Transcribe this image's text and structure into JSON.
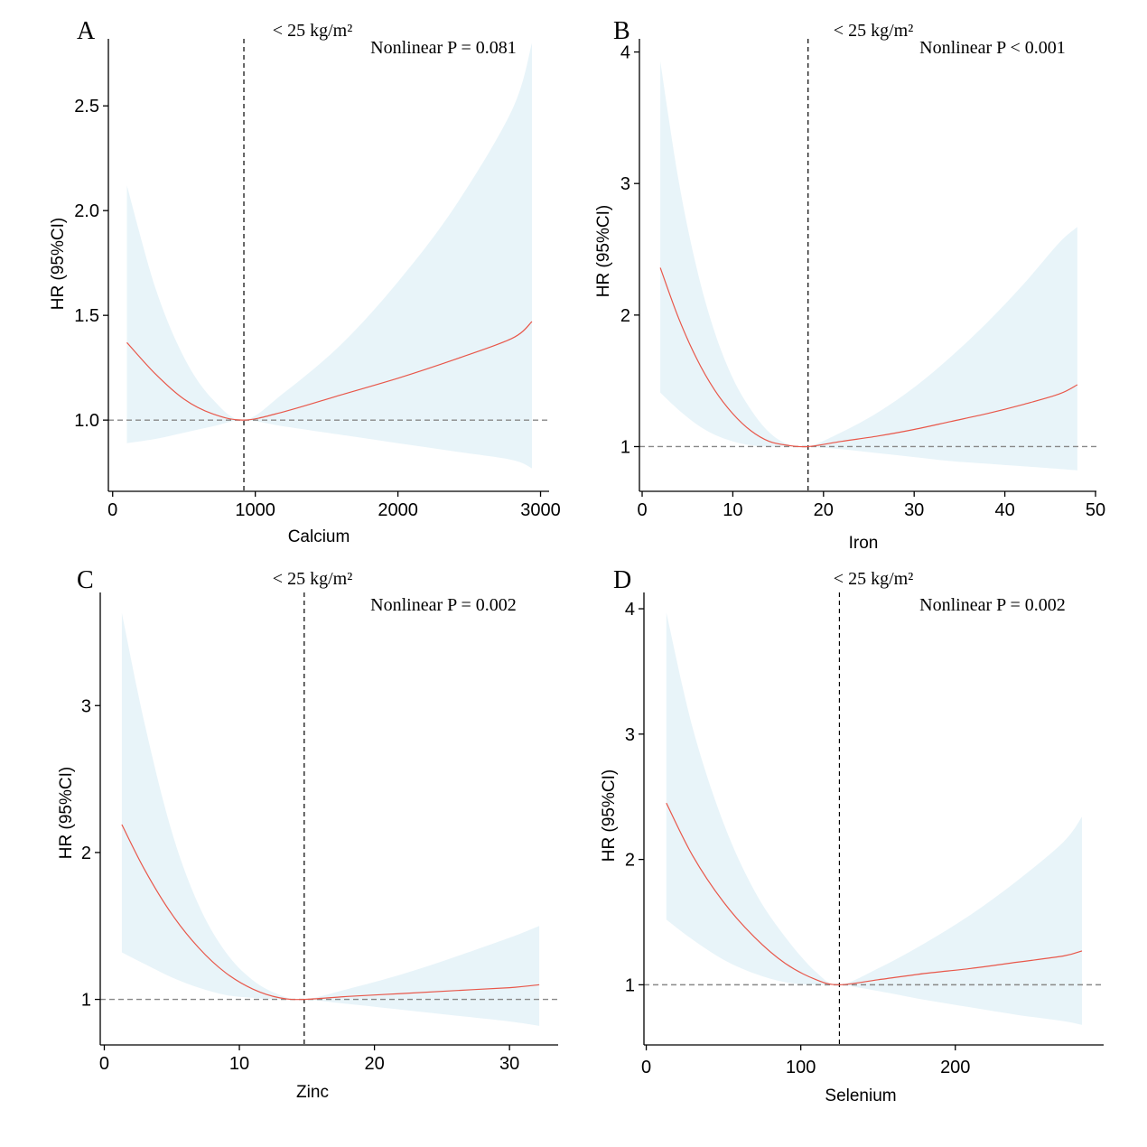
{
  "chart_data": [
    {
      "type": "line",
      "panel": "A",
      "subtitle": "< 25 kg/m²",
      "annotation": "Nonlinear P = 0.081",
      "xlabel": "Calcium",
      "ylabel": "HR (95%CI)",
      "xlim": [
        -30,
        3060
      ],
      "ylim": [
        0.66,
        2.82
      ],
      "x_ticks": [
        0,
        1000,
        2000,
        3000
      ],
      "x_tick_labels": [
        "0",
        "1000",
        "2000",
        "3000"
      ],
      "y_ticks": [
        1.0,
        1.5,
        2.0,
        2.5
      ],
      "y_tick_labels": [
        "1.0",
        "1.5",
        "2.0",
        "2.5"
      ],
      "reference_hr": 1,
      "reference_x": 920,
      "vertical_line_color": "#000000",
      "series": [
        {
          "x": [
            100,
            300,
            500,
            700,
            920,
            1200,
            1600,
            2000,
            2400,
            2800,
            2940
          ],
          "hr": [
            1.37,
            1.22,
            1.1,
            1.03,
            1.0,
            1.04,
            1.12,
            1.2,
            1.29,
            1.39,
            1.47
          ],
          "lower": [
            0.89,
            0.91,
            0.94,
            0.97,
            1.0,
            0.97,
            0.93,
            0.89,
            0.85,
            0.81,
            0.77
          ],
          "upper": [
            2.12,
            1.63,
            1.3,
            1.1,
            1.0,
            1.13,
            1.36,
            1.66,
            2.02,
            2.48,
            2.8
          ]
        }
      ]
    },
    {
      "type": "line",
      "panel": "B",
      "subtitle": "< 25 kg/m²",
      "annotation": "Nonlinear P < 0.001",
      "xlabel": "Iron",
      "ylabel": "HR (95%CI)",
      "xlim": [
        -0.3,
        50.1
      ],
      "ylim": [
        0.66,
        4.1
      ],
      "x_ticks": [
        0,
        10,
        20,
        30,
        40,
        50
      ],
      "x_tick_labels": [
        "0",
        "10",
        "20",
        "30",
        "40",
        "50"
      ],
      "y_ticks": [
        1,
        2,
        3,
        4
      ],
      "y_tick_labels": [
        "1",
        "2",
        "3",
        "4"
      ],
      "reference_hr": 1,
      "reference_x": 18.3,
      "vertical_line_color": "#8a8a8a",
      "series": [
        {
          "x": [
            2,
            4,
            6,
            8,
            10,
            12,
            14,
            16,
            18.3,
            22,
            26,
            30,
            34,
            38,
            42,
            46,
            48
          ],
          "hr": [
            2.36,
            1.98,
            1.67,
            1.43,
            1.25,
            1.12,
            1.04,
            1.01,
            1.0,
            1.04,
            1.08,
            1.13,
            1.19,
            1.25,
            1.32,
            1.4,
            1.47
          ],
          "lower": [
            1.41,
            1.28,
            1.17,
            1.09,
            1.04,
            1.01,
            1.0,
            1.0,
            1.0,
            0.98,
            0.95,
            0.92,
            0.89,
            0.87,
            0.85,
            0.83,
            0.82
          ],
          "upper": [
            3.93,
            3.03,
            2.36,
            1.87,
            1.52,
            1.28,
            1.11,
            1.02,
            1.0,
            1.11,
            1.26,
            1.45,
            1.68,
            1.94,
            2.23,
            2.55,
            2.67
          ]
        }
      ]
    },
    {
      "type": "line",
      "panel": "C",
      "subtitle": "< 25 kg/m²",
      "annotation": "Nonlinear P = 0.002",
      "xlabel": "Zinc",
      "ylabel": "HR (95%CI)",
      "xlim": [
        -0.3,
        33.6
      ],
      "ylim": [
        0.69,
        3.77
      ],
      "x_ticks": [
        0,
        10,
        20,
        30
      ],
      "x_tick_labels": [
        "0",
        "10",
        "20",
        "30"
      ],
      "y_ticks": [
        1,
        2,
        3
      ],
      "y_tick_labels": [
        "1",
        "2",
        "3"
      ],
      "reference_hr": 1,
      "reference_x": 14.8,
      "vertical_line_color": "#000000",
      "series": [
        {
          "x": [
            1.3,
            3,
            5,
            7,
            9,
            11,
            13,
            14.8,
            18,
            22,
            26,
            30,
            32.2
          ],
          "hr": [
            2.19,
            1.88,
            1.58,
            1.35,
            1.18,
            1.07,
            1.01,
            1.0,
            1.02,
            1.04,
            1.06,
            1.08,
            1.1
          ],
          "lower": [
            1.32,
            1.24,
            1.15,
            1.08,
            1.03,
            1.01,
            1.0,
            1.0,
            0.97,
            0.93,
            0.89,
            0.85,
            0.82
          ],
          "upper": [
            3.63,
            2.87,
            2.14,
            1.64,
            1.32,
            1.13,
            1.03,
            1.0,
            1.07,
            1.17,
            1.29,
            1.42,
            1.5
          ]
        }
      ]
    },
    {
      "type": "line",
      "panel": "D",
      "subtitle": "< 25 kg/m²",
      "annotation": "Nonlinear P = 0.002",
      "xlabel": "Selenium",
      "ylabel": "HR (95%CI)",
      "xlim": [
        -1.5,
        296
      ],
      "ylim": [
        0.52,
        4.13
      ],
      "x_ticks": [
        0,
        100,
        200
      ],
      "x_tick_labels": [
        "0",
        "100",
        "200"
      ],
      "y_ticks": [
        1,
        2,
        3,
        4
      ],
      "y_tick_labels": [
        "1",
        "2",
        "3",
        "4"
      ],
      "reference_hr": 1,
      "reference_x": 125,
      "vertical_line_color": "#000000",
      "series": [
        {
          "x": [
            13,
            30,
            50,
            70,
            90,
            110,
            125,
            150,
            180,
            210,
            240,
            270,
            282
          ],
          "hr": [
            2.45,
            2.03,
            1.66,
            1.38,
            1.17,
            1.04,
            1.0,
            1.04,
            1.09,
            1.13,
            1.18,
            1.23,
            1.27
          ],
          "lower": [
            1.52,
            1.36,
            1.2,
            1.09,
            1.02,
            1.0,
            1.0,
            0.95,
            0.88,
            0.82,
            0.76,
            0.71,
            0.68
          ],
          "upper": [
            3.97,
            3.05,
            2.29,
            1.75,
            1.38,
            1.1,
            1.0,
            1.13,
            1.33,
            1.56,
            1.83,
            2.14,
            2.34
          ]
        }
      ]
    }
  ],
  "colors": {
    "hr_line": "#e8574a",
    "ci_band": "#e8f4f9",
    "reference_line": "#888888"
  }
}
